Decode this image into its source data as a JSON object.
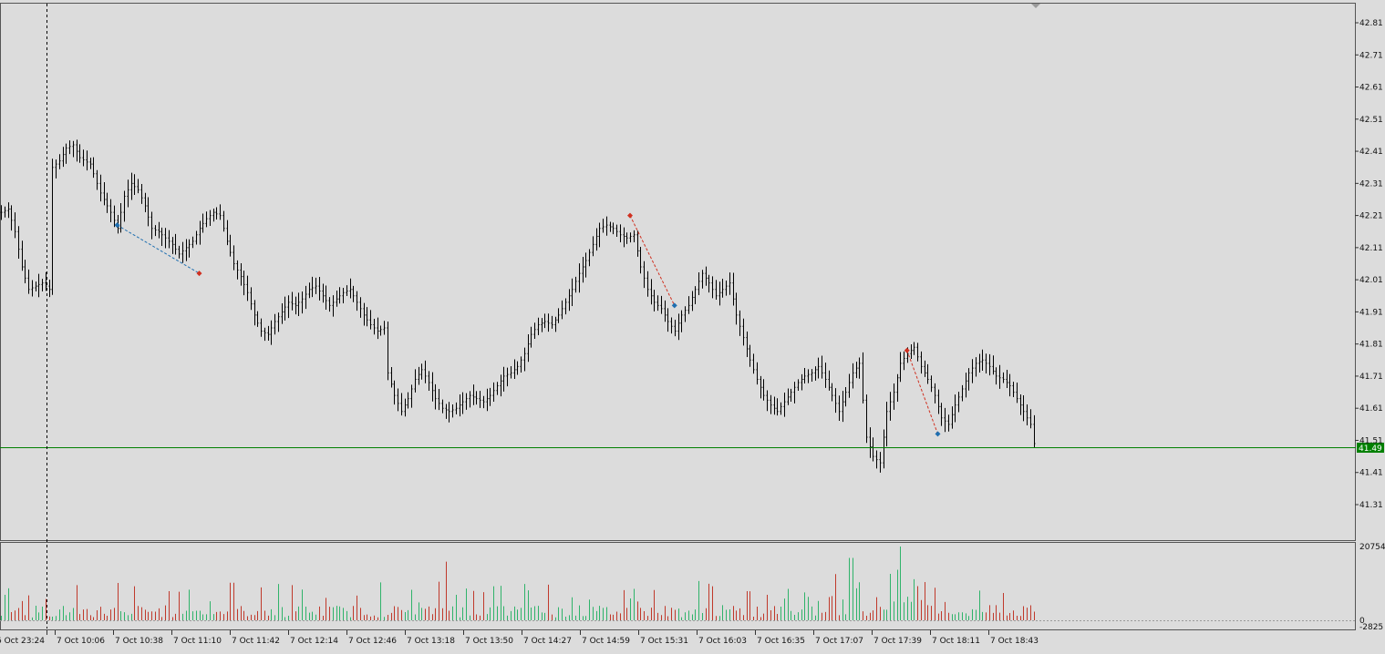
{
  "chart_data": {
    "type": "bar",
    "title": "",
    "xlabel": "",
    "ylabel": "",
    "price_axis": {
      "ylim": [
        41.23,
        42.87
      ],
      "ticks": [
        "42.81",
        "42.71",
        "42.61",
        "42.51",
        "42.41",
        "42.31",
        "42.21",
        "42.11",
        "42.01",
        "41.91",
        "41.81",
        "41.71",
        "41.61",
        "41.51",
        "41.41",
        "41.31"
      ]
    },
    "current_price": {
      "value": 41.49,
      "label": "41.49",
      "color": "#008000"
    },
    "time_labels": [
      "6 Oct 23:24",
      "7 Oct 10:06",
      "7 Oct 10:38",
      "7 Oct 11:10",
      "7 Oct 11:42",
      "7 Oct 12:14",
      "7 Oct 12:46",
      "7 Oct 13:18",
      "7 Oct 13:50",
      "7 Oct 14:27",
      "7 Oct 14:59",
      "7 Oct 15:31",
      "7 Oct 16:03",
      "7 Oct 16:35",
      "7 Oct 17:07",
      "7 Oct 17:39",
      "7 Oct 18:11",
      "7 Oct 18:43"
    ],
    "period_separator_label": "6 Oct 23:24",
    "close_path": [
      [
        0,
        42.22
      ],
      [
        2,
        42.23
      ],
      [
        4,
        42.16
      ],
      [
        6,
        42.05
      ],
      [
        8,
        41.98
      ],
      [
        10,
        41.99
      ],
      [
        12,
        42.0
      ],
      [
        14,
        41.98
      ],
      [
        15,
        42.36
      ],
      [
        17,
        42.38
      ],
      [
        19,
        42.42
      ],
      [
        21,
        42.43
      ],
      [
        23,
        42.39
      ],
      [
        26,
        42.37
      ],
      [
        29,
        42.28
      ],
      [
        32,
        42.22
      ],
      [
        34,
        42.17
      ],
      [
        36,
        42.27
      ],
      [
        38,
        42.31
      ],
      [
        40,
        42.29
      ],
      [
        42,
        42.24
      ],
      [
        44,
        42.17
      ],
      [
        46,
        42.16
      ],
      [
        48,
        42.14
      ],
      [
        50,
        42.12
      ],
      [
        52,
        42.09
      ],
      [
        54,
        42.11
      ],
      [
        56,
        42.13
      ],
      [
        58,
        42.17
      ],
      [
        60,
        42.2
      ],
      [
        62,
        42.22
      ],
      [
        64,
        42.21
      ],
      [
        66,
        42.13
      ],
      [
        68,
        42.06
      ],
      [
        70,
        42.02
      ],
      [
        72,
        41.97
      ],
      [
        74,
        41.9
      ],
      [
        76,
        41.85
      ],
      [
        78,
        41.84
      ],
      [
        80,
        41.88
      ],
      [
        82,
        41.91
      ],
      [
        84,
        41.94
      ],
      [
        86,
        41.93
      ],
      [
        88,
        41.95
      ],
      [
        90,
        41.98
      ],
      [
        92,
        41.99
      ],
      [
        94,
        41.96
      ],
      [
        96,
        41.93
      ],
      [
        98,
        41.95
      ],
      [
        100,
        41.97
      ],
      [
        102,
        41.98
      ],
      [
        104,
        41.94
      ],
      [
        106,
        41.9
      ],
      [
        108,
        41.87
      ],
      [
        110,
        41.85
      ],
      [
        112,
        41.86
      ],
      [
        113,
        41.72
      ],
      [
        115,
        41.65
      ],
      [
        117,
        41.6
      ],
      [
        119,
        41.64
      ],
      [
        121,
        41.7
      ],
      [
        123,
        41.73
      ],
      [
        125,
        41.69
      ],
      [
        127,
        41.64
      ],
      [
        129,
        41.61
      ],
      [
        131,
        41.6
      ],
      [
        133,
        41.61
      ],
      [
        135,
        41.63
      ],
      [
        137,
        41.65
      ],
      [
        139,
        41.64
      ],
      [
        141,
        41.63
      ],
      [
        143,
        41.65
      ],
      [
        145,
        41.68
      ],
      [
        147,
        41.71
      ],
      [
        149,
        41.72
      ],
      [
        151,
        41.74
      ],
      [
        153,
        41.78
      ],
      [
        155,
        41.84
      ],
      [
        157,
        41.87
      ],
      [
        159,
        41.88
      ],
      [
        161,
        41.87
      ],
      [
        163,
        41.9
      ],
      [
        165,
        41.94
      ],
      [
        167,
        41.98
      ],
      [
        169,
        42.03
      ],
      [
        171,
        42.07
      ],
      [
        173,
        42.12
      ],
      [
        175,
        42.17
      ],
      [
        177,
        42.18
      ],
      [
        179,
        42.17
      ],
      [
        181,
        42.15
      ],
      [
        183,
        42.14
      ],
      [
        185,
        42.15
      ],
      [
        187,
        42.05
      ],
      [
        189,
        41.98
      ],
      [
        191,
        41.94
      ],
      [
        193,
        41.92
      ],
      [
        195,
        41.88
      ],
      [
        197,
        41.85
      ],
      [
        199,
        41.9
      ],
      [
        201,
        41.93
      ],
      [
        203,
        41.98
      ],
      [
        205,
        42.03
      ],
      [
        207,
        42.0
      ],
      [
        209,
        41.96
      ],
      [
        211,
        41.98
      ],
      [
        213,
        42.0
      ],
      [
        215,
        41.9
      ],
      [
        217,
        41.83
      ],
      [
        219,
        41.76
      ],
      [
        221,
        41.7
      ],
      [
        223,
        41.65
      ],
      [
        225,
        41.62
      ],
      [
        227,
        41.6
      ],
      [
        229,
        41.63
      ],
      [
        231,
        41.66
      ],
      [
        233,
        41.69
      ],
      [
        235,
        41.71
      ],
      [
        237,
        41.72
      ],
      [
        239,
        41.74
      ],
      [
        241,
        41.7
      ],
      [
        243,
        41.65
      ],
      [
        245,
        41.6
      ],
      [
        247,
        41.66
      ],
      [
        249,
        41.72
      ],
      [
        251,
        41.75
      ],
      [
        253,
        41.52
      ],
      [
        255,
        41.46
      ],
      [
        257,
        41.44
      ],
      [
        259,
        41.6
      ],
      [
        261,
        41.66
      ],
      [
        263,
        41.75
      ],
      [
        265,
        41.78
      ],
      [
        267,
        41.8
      ],
      [
        269,
        41.74
      ],
      [
        271,
        41.7
      ],
      [
        273,
        41.65
      ],
      [
        275,
        41.58
      ],
      [
        277,
        41.56
      ],
      [
        279,
        41.62
      ],
      [
        281,
        41.67
      ],
      [
        283,
        41.72
      ],
      [
        285,
        41.75
      ],
      [
        287,
        41.76
      ],
      [
        289,
        41.74
      ],
      [
        291,
        41.71
      ],
      [
        293,
        41.7
      ],
      [
        295,
        41.68
      ],
      [
        297,
        41.64
      ],
      [
        299,
        41.6
      ],
      [
        301,
        41.56
      ],
      [
        302,
        41.5
      ]
    ],
    "volume_axis": {
      "ylim": [
        -2825,
        20754
      ],
      "ticks": [
        "20754",
        "0",
        "-2825"
      ]
    },
    "markers": [
      {
        "type": "buy",
        "price": 42.18,
        "bar": 34,
        "color": "#1f6fb0"
      },
      {
        "type": "sell",
        "price": 42.03,
        "bar": 58,
        "color": "#d03020"
      },
      {
        "type": "sell",
        "price": 42.21,
        "bar": 184,
        "color": "#d03020"
      },
      {
        "type": "buy",
        "price": 41.93,
        "bar": 197,
        "color": "#1f6fb0"
      },
      {
        "type": "sell",
        "price": 41.79,
        "bar": 265,
        "color": "#d03020"
      },
      {
        "type": "buy",
        "price": 41.53,
        "bar": 274,
        "color": "#1f6fb0"
      }
    ],
    "trade_lines": [
      {
        "from": 0,
        "to": 1,
        "color": "#1f6fb0"
      },
      {
        "from": 2,
        "to": 3,
        "color": "#d03020"
      },
      {
        "from": 4,
        "to": 5,
        "color": "#d03020"
      }
    ],
    "colors": {
      "background": "#dcdcdc",
      "bars": "#000000",
      "volume_up": "#2fb36a",
      "volume_down": "#c0392b"
    },
    "grid": false
  }
}
